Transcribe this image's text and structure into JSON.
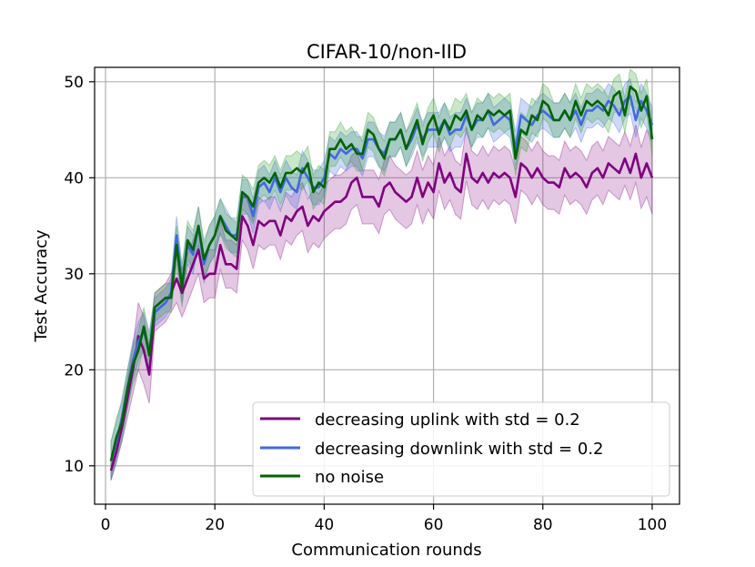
{
  "chart_data": {
    "type": "line",
    "title": "CIFAR-10/non-IID",
    "xlabel": "Communication rounds",
    "ylabel": "Test Accuracy",
    "xlim": [
      -2,
      105
    ],
    "ylim": [
      6,
      51.5
    ],
    "xticks": [
      0,
      20,
      40,
      60,
      80,
      100
    ],
    "yticks": [
      10,
      20,
      30,
      40,
      50
    ],
    "grid": true,
    "legend_position": "lower-right",
    "band_note": "shaded band = spread across runs",
    "series": [
      {
        "name": "decreasing uplink with std = 0.2",
        "color": "#800080",
        "x": [
          1,
          2,
          3,
          4,
          5,
          6,
          7,
          8,
          9,
          10,
          11,
          12,
          13,
          14,
          15,
          16,
          17,
          18,
          19,
          20,
          21,
          22,
          23,
          24,
          25,
          26,
          27,
          28,
          29,
          30,
          31,
          32,
          33,
          34,
          35,
          36,
          37,
          38,
          39,
          40,
          41,
          42,
          43,
          44,
          45,
          46,
          47,
          48,
          49,
          50,
          51,
          52,
          53,
          54,
          55,
          56,
          57,
          58,
          59,
          60,
          61,
          62,
          63,
          64,
          65,
          66,
          67,
          68,
          69,
          70,
          71,
          72,
          73,
          74,
          75,
          76,
          77,
          78,
          79,
          80,
          81,
          82,
          83,
          84,
          85,
          86,
          87,
          88,
          89,
          90,
          91,
          92,
          93,
          94,
          95,
          96,
          97,
          98,
          99,
          100
        ],
        "values": [
          9.5,
          11.5,
          14,
          17,
          20,
          23.5,
          22,
          19.5,
          26,
          26.5,
          27,
          28,
          29.5,
          28,
          29.5,
          31,
          32.5,
          29.5,
          30,
          30,
          33,
          31,
          31,
          30.5,
          36,
          35,
          33,
          35.5,
          35,
          35.5,
          35.5,
          34,
          36,
          35.5,
          36.5,
          37,
          35,
          36,
          35.5,
          36.5,
          37,
          37.5,
          37.5,
          38,
          39.5,
          40,
          38,
          38,
          38,
          37,
          39,
          39.5,
          38.5,
          38,
          37.5,
          38,
          40,
          38,
          39.5,
          38.5,
          41.5,
          39.5,
          40.5,
          39,
          38.5,
          42.5,
          40,
          39.5,
          40.5,
          39.5,
          40.5,
          40,
          40.5,
          40,
          38,
          41.5,
          41,
          40,
          41,
          40,
          39.5,
          39.5,
          39,
          41,
          40,
          40.5,
          40,
          39,
          40.5,
          41,
          40,
          41.5,
          41,
          40.5,
          42,
          40.5,
          42.5,
          40,
          41.5,
          40
        ],
        "spread": [
          1.0,
          1.2,
          1.5,
          2.0,
          2.5,
          3.5,
          3.5,
          3.0,
          2.0,
          2.0,
          2.0,
          2.0,
          2.5,
          2.5,
          2.5,
          2.5,
          2.5,
          2.5,
          2.5,
          2.5,
          2.5,
          2.5,
          2.5,
          2.5,
          2.5,
          2.5,
          2.5,
          2.5,
          2.5,
          2.5,
          2.5,
          2.5,
          2.5,
          2.5,
          2.5,
          2.5,
          2.8,
          2.8,
          2.8,
          2.8,
          2.8,
          2.8,
          2.8,
          2.8,
          2.8,
          2.8,
          2.8,
          2.8,
          2.8,
          2.8,
          2.8,
          2.8,
          2.8,
          2.8,
          2.8,
          2.8,
          2.8,
          2.8,
          2.8,
          2.8,
          2.8,
          2.8,
          2.8,
          2.8,
          2.8,
          2.8,
          2.8,
          2.8,
          2.8,
          2.8,
          2.8,
          2.8,
          2.8,
          2.8,
          2.8,
          2.8,
          2.8,
          2.8,
          2.8,
          2.8,
          2.8,
          2.8,
          2.8,
          2.8,
          2.8,
          2.8,
          2.8,
          2.8,
          2.8,
          2.8,
          2.8,
          2.8,
          2.8,
          2.8,
          2.8,
          2.8,
          3.0,
          3.2,
          3.5,
          3.8
        ]
      },
      {
        "name": "decreasing downlink with std = 0.2",
        "color": "#4169e1",
        "x": [
          1,
          2,
          3,
          4,
          5,
          6,
          7,
          8,
          9,
          10,
          11,
          12,
          13,
          14,
          15,
          16,
          17,
          18,
          19,
          20,
          21,
          22,
          23,
          24,
          25,
          26,
          27,
          28,
          29,
          30,
          31,
          32,
          33,
          34,
          35,
          36,
          37,
          38,
          39,
          40,
          41,
          42,
          43,
          44,
          45,
          46,
          47,
          48,
          49,
          50,
          51,
          52,
          53,
          54,
          55,
          56,
          57,
          58,
          59,
          60,
          61,
          62,
          63,
          64,
          65,
          66,
          67,
          68,
          69,
          70,
          71,
          72,
          73,
          74,
          75,
          76,
          77,
          78,
          79,
          80,
          81,
          82,
          83,
          84,
          85,
          86,
          87,
          88,
          89,
          90,
          91,
          92,
          93,
          94,
          95,
          96,
          97,
          98,
          99,
          100
        ],
        "values": [
          10.5,
          12.5,
          15,
          18,
          21,
          23,
          24,
          22,
          26,
          26.5,
          27,
          28,
          34,
          29,
          33,
          32,
          35,
          31,
          33,
          34,
          36,
          35,
          34,
          34,
          38,
          38,
          36,
          39,
          39.5,
          38.5,
          40,
          38.5,
          40,
          39,
          38.5,
          41,
          40,
          39,
          39,
          40,
          42.5,
          42,
          43,
          42.5,
          43,
          43,
          42,
          44,
          44,
          43,
          42.5,
          44,
          44,
          45,
          43,
          44,
          45.5,
          44,
          45,
          45,
          45,
          46,
          44.5,
          45,
          45,
          46.5,
          45,
          46,
          46,
          47,
          45.5,
          46,
          46.5,
          46,
          43,
          46.5,
          46,
          45.5,
          46.5,
          47,
          46.5,
          46,
          46,
          47,
          46,
          47,
          45.5,
          47,
          47,
          47.5,
          47,
          48,
          47.5,
          46.5,
          48,
          48.5,
          46,
          48,
          47,
          45.5
        ],
        "spread": [
          2.0,
          2.0,
          2.0,
          2.0,
          2.0,
          2.0,
          2.0,
          2.0,
          1.5,
          1.5,
          1.5,
          1.5,
          2.0,
          2.0,
          2.0,
          2.0,
          2.0,
          2.0,
          2.0,
          2.0,
          1.8,
          1.8,
          1.8,
          1.8,
          1.8,
          1.8,
          1.8,
          1.8,
          1.8,
          1.8,
          1.8,
          1.8,
          1.8,
          1.8,
          1.8,
          1.8,
          1.8,
          1.8,
          1.8,
          1.8,
          1.8,
          1.8,
          1.8,
          1.8,
          1.8,
          1.8,
          1.8,
          1.8,
          1.8,
          1.8,
          1.8,
          1.8,
          1.8,
          1.8,
          1.8,
          1.8,
          1.8,
          1.8,
          1.8,
          1.8,
          1.8,
          1.8,
          1.8,
          1.8,
          1.8,
          1.8,
          1.8,
          1.8,
          1.8,
          1.8,
          1.8,
          1.8,
          1.8,
          1.8,
          1.8,
          1.8,
          1.8,
          1.8,
          1.8,
          1.8,
          1.8,
          1.8,
          1.8,
          1.8,
          1.8,
          1.8,
          1.8,
          1.8,
          1.8,
          1.8,
          1.8,
          1.8,
          1.8,
          1.8,
          1.8,
          1.8,
          1.8,
          1.8,
          1.8,
          1.8
        ]
      },
      {
        "name": "no noise",
        "color": "#006400",
        "x": [
          1,
          2,
          3,
          4,
          5,
          6,
          7,
          8,
          9,
          10,
          11,
          12,
          13,
          14,
          15,
          16,
          17,
          18,
          19,
          20,
          21,
          22,
          23,
          24,
          25,
          26,
          27,
          28,
          29,
          30,
          31,
          32,
          33,
          34,
          35,
          36,
          37,
          38,
          39,
          40,
          41,
          42,
          43,
          44,
          45,
          46,
          47,
          48,
          49,
          50,
          51,
          52,
          53,
          54,
          55,
          56,
          57,
          58,
          59,
          60,
          61,
          62,
          63,
          64,
          65,
          66,
          67,
          68,
          69,
          70,
          71,
          72,
          73,
          74,
          75,
          76,
          77,
          78,
          79,
          80,
          81,
          82,
          83,
          84,
          85,
          86,
          87,
          88,
          89,
          90,
          91,
          92,
          93,
          94,
          95,
          96,
          97,
          98,
          99,
          100
        ],
        "values": [
          10.5,
          13,
          14.5,
          18,
          20.5,
          22,
          24.5,
          21.5,
          26.5,
          27,
          27.5,
          27.5,
          33,
          28.5,
          33.5,
          32.5,
          35,
          31.5,
          33,
          34,
          36,
          34.5,
          34,
          33.5,
          38.5,
          38,
          37,
          39.5,
          40,
          39.5,
          40.5,
          39,
          40.5,
          40.5,
          41,
          40.5,
          41.5,
          38.5,
          39.5,
          39,
          43,
          43,
          44,
          43,
          43.5,
          42.5,
          42.5,
          45,
          44.5,
          43,
          42,
          44,
          44,
          45,
          43,
          44.5,
          46,
          43.5,
          45.5,
          46.5,
          44.5,
          46,
          45,
          46.5,
          46,
          47,
          45,
          46.5,
          46,
          47,
          46.5,
          47,
          46.5,
          47,
          42,
          45,
          44.5,
          46.5,
          46,
          48,
          47.5,
          46,
          46,
          47,
          46,
          48,
          46.5,
          48,
          47.5,
          48,
          47.5,
          46.5,
          48.5,
          49,
          46.5,
          49.5,
          49,
          47,
          48.5,
          44
        ]
      }
    ]
  }
}
